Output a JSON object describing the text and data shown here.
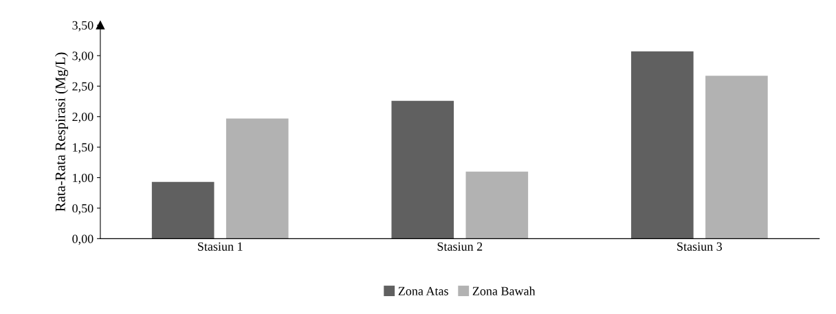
{
  "chart_data": {
    "type": "bar",
    "ylabel": "Rata-Rata Respirasi (Mg/L)",
    "categories": [
      "Stasiun 1",
      "Stasiun 2",
      "Stasiun 3"
    ],
    "series": [
      {
        "name": "Zona Atas",
        "color": "#606060",
        "values": [
          0.93,
          2.26,
          3.07
        ]
      },
      {
        "name": "Zona Bawah",
        "color": "#b2b2b2",
        "values": [
          1.97,
          1.1,
          2.67
        ]
      }
    ],
    "ylim": [
      0,
      3.5
    ],
    "yticks": [
      {
        "value": 0,
        "label": "0,00"
      },
      {
        "value": 0.5,
        "label": "0,50"
      },
      {
        "value": 1.0,
        "label": "1,00"
      },
      {
        "value": 1.5,
        "label": "1,50"
      },
      {
        "value": 2.0,
        "label": "2,00"
      },
      {
        "value": 2.5,
        "label": "2,50"
      },
      {
        "value": 3.0,
        "label": "3,00"
      },
      {
        "value": 3.5,
        "label": "3,50"
      }
    ],
    "grid": false,
    "legend": "bottom"
  }
}
